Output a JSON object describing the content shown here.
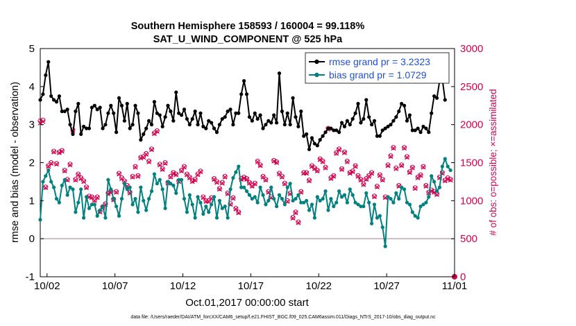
{
  "chart_data": {
    "type": "line",
    "title": [
      "Southern Hemisphere 158593 / 160004 = 99.118%",
      "SAT_U_WIND_COMPONENT @ 525 hPa"
    ],
    "xlabel": "Oct.01,2017 00:00:00 start",
    "ylabel_left": "rmse and bias (model - observation)",
    "ylabel_right": "# of obs: o=possible; ×=assimilated",
    "x_range_days": [
      0.5,
      31.0
    ],
    "ylim_left": [
      -1,
      5
    ],
    "ylim_right": [
      0,
      3000
    ],
    "yticks_left": [
      -1,
      0,
      1,
      2,
      3,
      4,
      5
    ],
    "yticks_right": [
      0,
      500,
      1000,
      1500,
      2000,
      2500,
      3000
    ],
    "xtick_positions_days": [
      1,
      6,
      11,
      16,
      21,
      26,
      31
    ],
    "xtick_labels": [
      "10/02",
      "10/07",
      "10/12",
      "10/17",
      "10/22",
      "10/27",
      "11/01"
    ],
    "zero_line": 0,
    "legend": [
      "rmse grand pr = 3.2323",
      "bias grand pr = 1.0729"
    ],
    "footnote": "data file: /Users/raeder/DAI/ATM_forcXX/CAM6_setup/f.e21.FHIST_BGC.f09_025.CAM6assim.011/Diags_NTrS_2017-10/obs_diag_output.nc",
    "series": [
      {
        "name": "rmse",
        "axis": "left",
        "color": "#000000",
        "marker": "circle",
        "values": [
          3.65,
          3.8,
          4.3,
          4.65,
          3.75,
          3.65,
          3.6,
          3.75,
          3.35,
          3.35,
          3.4,
          3.0,
          2.75,
          3.35,
          3.55,
          2.75,
          2.95,
          2.9,
          2.9,
          3.45,
          3.5,
          3.4,
          3.45,
          2.9,
          3.0,
          3.3,
          3.5,
          3.3,
          2.8,
          3.7,
          3.5,
          3.1,
          3.55,
          2.9,
          3.0,
          3.5,
          3.3,
          2.6,
          2.75,
          2.9,
          3.1,
          3.0,
          3.6,
          3.3,
          3.25,
          2.95,
          3.2,
          3.5,
          3.35,
          3.1,
          3.85,
          3.3,
          3.25,
          3.4,
          3.15,
          3.0,
          3.15,
          3.35,
          3.0,
          3.3,
          2.95,
          2.9,
          3.1,
          3.05,
          2.9,
          2.8,
          3.0,
          3.15,
          3.2,
          3.35,
          3.4,
          3.0,
          3.3,
          3.3,
          3.8,
          4.15,
          3.8,
          3.2,
          3.1,
          3.3,
          3.15,
          3.25,
          2.9,
          3.0,
          3.1,
          3.05,
          3.25,
          3.05,
          4.35,
          3.35,
          3.0,
          3.3,
          3.0,
          3.7,
          3.2,
          2.95,
          3.35,
          2.7,
          2.75,
          2.35,
          2.65,
          2.5,
          2.45,
          2.6,
          2.7,
          2.8,
          2.9,
          2.9,
          2.85,
          2.85,
          2.8,
          3.05,
          2.95,
          3.1,
          3.0,
          3.15,
          3.3,
          3.55,
          3.05,
          3.15,
          3.65,
          3.2,
          3.0,
          3.1,
          2.7,
          2.7,
          2.85,
          2.9,
          2.95,
          3.0,
          3.1,
          3.2,
          3.35,
          3.55,
          3.5,
          3.1,
          3.25,
          2.85,
          2.85,
          2.9,
          2.8,
          2.95,
          2.9,
          2.8,
          3.3,
          3.75,
          3.7,
          4.15,
          4.2,
          3.65
        ]
      },
      {
        "name": "bias",
        "axis": "left",
        "color": "#00807f",
        "marker": "circle",
        "values": [
          0.5,
          1.5,
          1.65,
          1.8,
          1.5,
          1.35,
          1.05,
          0.95,
          1.4,
          1.55,
          1.15,
          1.35,
          1.3,
          0.7,
          0.95,
          1.3,
          0.55,
          1.1,
          0.8,
          0.9,
          0.9,
          0.6,
          0.75,
          0.85,
          0.55,
          1.55,
          1.3,
          1.05,
          0.85,
          0.6,
          1.05,
          1.45,
          1.3,
          1.35,
          0.9,
          1.05,
          0.7,
          1.35,
          1.0,
          0.75,
          1.05,
          1.25,
          1.7,
          1.45,
          1.55,
          1.3,
          0.8,
          1.5,
          1.45,
          1.4,
          1.2,
          1.55,
          1.55,
          1.05,
          0.7,
          1.15,
          0.9,
          0.55,
          1.1,
          0.95,
          0.65,
          0.85,
          0.7,
          0.9,
          1.1,
          0.55,
          1.0,
          0.8,
          0.85,
          0.55,
          1.3,
          1.6,
          1.75,
          1.9,
          1.35,
          1.35,
          1.25,
          1.15,
          1.05,
          1.1,
          0.95,
          1.35,
          1.15,
          0.9,
          1.0,
          1.35,
          1.05,
          0.85,
          1.15,
          1.05,
          0.9,
          1.35,
          1.45,
          1.0,
          1.05,
          1.15,
          0.95,
          0.95,
          1.0,
          0.75,
          0.9,
          0.55,
          1.1,
          1.0,
          1.05,
          1.25,
          0.75,
          1.05,
          0.85,
          0.95,
          1.25,
          1.1,
          1.15,
          0.95,
          1.3,
          1.15,
          0.95,
          0.9,
          0.85,
          0.85,
          1.2,
          0.95,
          0.4,
          0.9,
          0.55,
          0.6,
          0.3,
          -0.2,
          1.1,
          1.05,
          0.95,
          1.2,
          1.05,
          1.35,
          1.3,
          0.95,
          0.9,
          0.7,
          0.6,
          0.55,
          0.85,
          0.9,
          0.95,
          1.1,
          1.65,
          1.5,
          1.25,
          1.35,
          1.9,
          2.1,
          1.9,
          1.8
        ]
      },
      {
        "name": "# obs possible",
        "axis": "right",
        "color": "#d6004e",
        "marker": "circle-open",
        "values": [
          2050,
          2060,
          1180,
          1460,
          1500,
          1650,
          1490,
          1640,
          1660,
          1400,
          1280,
          1480,
          1930,
          1280,
          1350,
          1300,
          1260,
          1180,
          1060,
          1050,
          1010,
          1050,
          860,
          920,
          960,
          1100,
          1120,
          1020,
          1120,
          1360,
          1300,
          1260,
          1200,
          1110,
          1320,
          1450,
          1330,
          1570,
          1580,
          1620,
          1520,
          1680,
          1890,
          1920,
          1480,
          1420,
          1500,
          1240,
          1320,
          1370,
          1350,
          1260,
          1400,
          1450,
          1350,
          1310,
          1260,
          1280,
          1350,
          1390,
          1050,
          1000,
          1000,
          1040,
          1290,
          1250,
          1160,
          1240,
          1320,
          1100,
          960,
          1040,
          900,
          850,
          1290,
          1310,
          1290,
          1240,
          1200,
          1230,
          1520,
          1470,
          1320,
          1280,
          1120,
          1050,
          1530,
          1510,
          1360,
          1320,
          1230,
          1000,
          1100,
          780,
          850,
          720,
          1120,
          1370,
          1370,
          1270,
          1460,
          1430,
          1400,
          1550,
          1520,
          1440,
          1950,
          1300,
          1330,
          1630,
          1680,
          1420,
          1640,
          1520,
          1370,
          1390,
          1460,
          1330,
          1280,
          1220,
          1290,
          1330,
          1370,
          1060,
          1190,
          1340,
          1280,
          1050,
          1470,
          1590,
          1700,
          1430,
          1200,
          1470,
          1700,
          1580,
          1380,
          1440,
          1170,
          1310,
          1340,
          1450,
          1200,
          1110,
          1140,
          1120,
          1090,
          1310,
          1370,
          1270,
          1300,
          1280
        ]
      },
      {
        "name": "# obs assimilated",
        "axis": "right",
        "color": "#d6004e",
        "marker": "x",
        "values": [
          2020,
          2040,
          1170,
          1450,
          1490,
          1640,
          1480,
          1630,
          1650,
          1390,
          1270,
          1470,
          1920,
          1270,
          1340,
          1290,
          1250,
          1170,
          1050,
          1040,
          1000,
          1040,
          850,
          910,
          950,
          1090,
          1110,
          1010,
          1110,
          1350,
          1290,
          1250,
          1190,
          1100,
          1310,
          1440,
          1320,
          1560,
          1570,
          1610,
          1510,
          1670,
          1880,
          1910,
          1470,
          1410,
          1490,
          1230,
          1310,
          1360,
          1340,
          1250,
          1390,
          1440,
          1340,
          1300,
          1250,
          1270,
          1340,
          1380,
          1040,
          990,
          990,
          1030,
          1280,
          1240,
          1150,
          1230,
          1310,
          1090,
          950,
          1030,
          890,
          840,
          1280,
          1300,
          1280,
          1230,
          1190,
          1220,
          1510,
          1460,
          1310,
          1270,
          1110,
          1040,
          1520,
          1500,
          1350,
          1310,
          1220,
          990,
          1090,
          770,
          840,
          710,
          1110,
          1360,
          1360,
          1260,
          1450,
          1420,
          1390,
          1540,
          1510,
          1430,
          1940,
          1290,
          1320,
          1620,
          1670,
          1410,
          1630,
          1510,
          1360,
          1380,
          1450,
          1320,
          1270,
          1210,
          1280,
          1320,
          1360,
          1050,
          1180,
          1330,
          1270,
          1040,
          1460,
          1580,
          1690,
          1420,
          1190,
          1460,
          1690,
          1570,
          1370,
          1430,
          1160,
          1300,
          1330,
          1440,
          1190,
          1100,
          1130,
          1110,
          1080,
          1300,
          1360,
          1260,
          1290,
          1270
        ]
      }
    ]
  }
}
